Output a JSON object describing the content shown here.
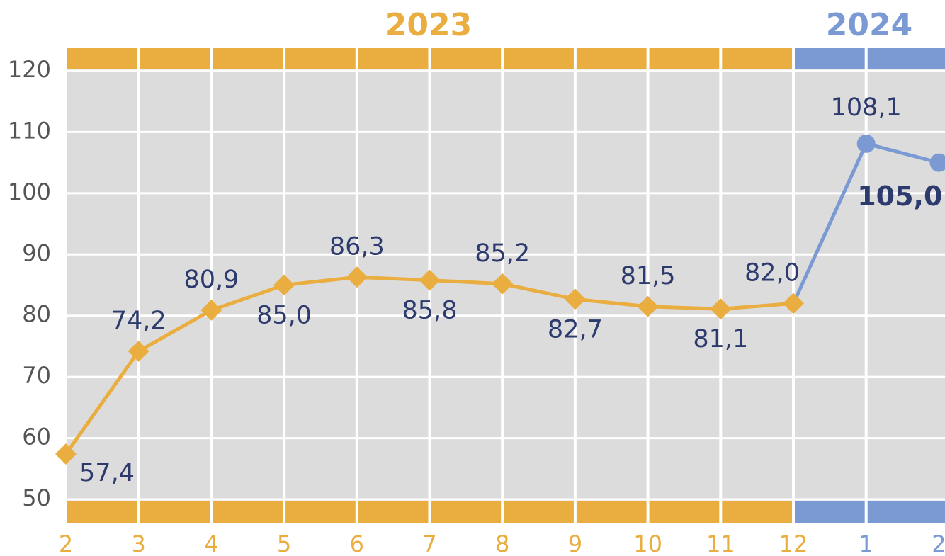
{
  "chart_data": {
    "type": "line",
    "categories": [
      "2",
      "3",
      "4",
      "5",
      "6",
      "7",
      "8",
      "9",
      "10",
      "11",
      "12",
      "1",
      "2"
    ],
    "series": [
      {
        "name": "2023",
        "color": "#e9ae3f",
        "marker": "diamond",
        "values": [
          57.4,
          74.2,
          80.9,
          85.0,
          86.3,
          85.8,
          85.2,
          82.7,
          81.5,
          81.1,
          82.0,
          null,
          null
        ],
        "value_labels": [
          "57,4",
          "74,2",
          "80,9",
          "85,0",
          "86,3",
          "85,8",
          "85,2",
          "82,7",
          "81,5",
          "81,1",
          "82,0",
          null,
          null
        ]
      },
      {
        "name": "2024",
        "color": "#7b9ad3",
        "marker": "circle",
        "values": [
          null,
          null,
          null,
          null,
          null,
          null,
          null,
          null,
          null,
          null,
          null,
          108.1,
          105.0
        ],
        "value_labels": [
          null,
          null,
          null,
          null,
          null,
          null,
          null,
          null,
          null,
          null,
          null,
          "108,1",
          "105,0"
        ]
      }
    ],
    "ylim": [
      50,
      120
    ],
    "yticks": [
      50,
      60,
      70,
      80,
      90,
      100,
      110,
      120
    ],
    "grid": true
  }
}
